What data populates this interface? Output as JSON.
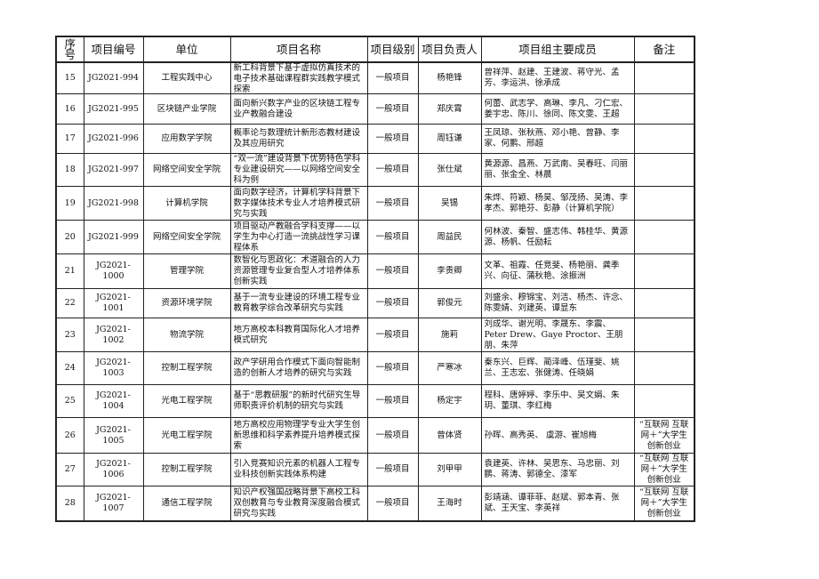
{
  "headers": [
    "序号",
    "项目编号",
    "单位",
    "项目名称",
    "项目级别",
    "项目负责人",
    "项目组主要成员",
    "备注"
  ],
  "rows": [
    {
      "no": "15",
      "code": "JG2021-994",
      "unit": "工程实践中心",
      "name": "新工科背景下基于虚拟仿真技术的电子技术基础课程群实践教学模式探索",
      "level": "一般项目",
      "leader": "杨艳锋",
      "members": "曾祥萍、赵建、王建波、蒋守光、孟芳、李运洪、徐承成",
      "note": ""
    },
    {
      "no": "16",
      "code": "JG2021-995",
      "unit": "区块链产业学院",
      "name": "面向新兴数字产业的区块链工程专业产教融合建设",
      "level": "一般项目",
      "leader": "郑庆霄",
      "members": "何蕾、武志学、高琳、李凡、刁仁宏、姜宇忠、陈川、徐同、陈文雯、王超",
      "note": ""
    },
    {
      "no": "17",
      "code": "JG2021-996",
      "unit": "应用数学学院",
      "name": "概率论与数理统计新形态教材建设及其应用研究",
      "level": "一般项目",
      "leader": "周钰谦",
      "members": "王凤琼、张秋燕、邓小艳、曾静、李家、何鹏、邢超",
      "note": ""
    },
    {
      "no": "18",
      "code": "JG2021-997",
      "unit": "网络空间安全学院",
      "name": "“双一流”建设背景下优势特色学科专业建设研究——以网络空间安全科为例",
      "level": "一般项目",
      "leader": "张仕斌",
      "members": "黄源源、昌燕、万武南、吴春旺、闫丽丽、张金全、林晨",
      "note": ""
    },
    {
      "no": "19",
      "code": "JG2021-998",
      "unit": "计算机学院",
      "name": "面向数字经济，计算机学科背景下数字媒体技术专业人才培养模式研究与实践",
      "level": "一般项目",
      "leader": "吴锡",
      "members": "朱烨、符颖、杨昊、邹茂扬、吴涛、李孝杰、郭艳芬、彭静（计算机学院）",
      "note": ""
    },
    {
      "no": "20",
      "code": "JG2021-999",
      "unit": "网络空间安全学院",
      "name": "项目驱动产教融合学科支撑——以学生为中心打造一流挑战性学习课程体系",
      "level": "一般项目",
      "leader": "周益民",
      "members": "何林波、秦智、盛志伟、韩桂华、黄源源、杨帆、任励耘",
      "note": ""
    },
    {
      "no": "21",
      "code": "JG2021-1000",
      "unit": "管理学院",
      "name": "数智化与思政化：术道融合的人力资源管理专业复合型人才培养体系创新实践",
      "level": "一般项目",
      "leader": "李贵卿",
      "members": "文革、祖霞、任竞斐、杨艳丽、龚季兴、向征、蒲秋艳、涂振洲",
      "note": ""
    },
    {
      "no": "22",
      "code": "JG2021-1001",
      "unit": "资源环境学院",
      "name": "基于一流专业建设的环境工程专业教育教学综合改革研究与实践",
      "level": "一般项目",
      "leader": "郭俊元",
      "members": "刘盛余、穆锦宝、刘洁、杨杰、许念、陈雯婧、刘建英、谭显东",
      "note": ""
    },
    {
      "no": "23",
      "code": "JG2021-1002",
      "unit": "物流学院",
      "name": "地方高校本科教育国际化人才培养模式研究",
      "level": "一般项目",
      "leader": "施莉",
      "members": "刘成华、谢光明、李晟东、李震、Peter Drew、Gaye Proctor、王朋朋、朱萍",
      "note": ""
    },
    {
      "no": "24",
      "code": "JG2021-1003",
      "unit": "控制工程学院",
      "name": "政产学研用合作模式下面向智能制造的创新人才培养的研究与实践",
      "level": "一般项目",
      "leader": "严寒冰",
      "members": "秦东兴、巨辉、蔺泽峰、伍瑾斐、姚兰、王志宏、张健涛、任晓娟",
      "note": ""
    },
    {
      "no": "25",
      "code": "JG2021-1004",
      "unit": "光电工程学院",
      "name": "基于“思教研服”的新时代研究生导师职责评价机制的研究与实践",
      "level": "一般项目",
      "leader": "杨定宇",
      "members": "程科、唐婷婷、李乐中、吴文娟、朱玥、董琪、李红梅",
      "note": ""
    },
    {
      "no": "26",
      "code": "JG2021-1005",
      "unit": "光电工程学院",
      "name": "地方高校应用物理学专业大学生创新思维和科学素养提升培养模式探索",
      "level": "一般项目",
      "leader": "曾体贤",
      "members": "孙晖、高秀英、 虞游、崔旭梅",
      "note": "“互联网 互联网＋”大学生创新创业"
    },
    {
      "no": "27",
      "code": "JG2021-1006",
      "unit": "控制工程学院",
      "name": "引入竞赛知识元素的机器人工程专业科技创新实践体系构建",
      "level": "一般项目",
      "leader": "刘甲甲",
      "members": "袁建英、许林、吴思东、马忠丽、刘鹏、蒋涛、郭德全、漆军",
      "note": "“互联网 互联网＋”大学生创新创业"
    },
    {
      "no": "28",
      "code": "JG2021-1007",
      "unit": "通信工程学院",
      "name": "知识产权强国战略背景下高校工科双创教育与专业教育深度融合模式研究与实践",
      "level": "一般项目",
      "leader": "王海时",
      "members": "彭靖涵、谭菲菲、赵斌、郭本青、张斌、王天宝、李英祥",
      "note": "“互联网 互联网＋”大学生创新创业"
    }
  ]
}
